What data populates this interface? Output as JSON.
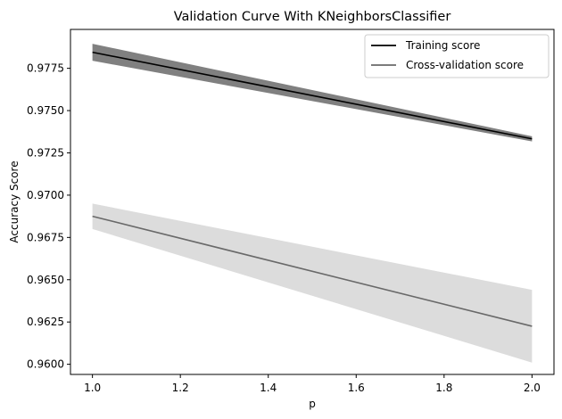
{
  "chart_data": {
    "type": "line",
    "title": "Validation Curve With KNeighborsClassifier",
    "xlabel": "p",
    "ylabel": "Accuracy Score",
    "xlim": [
      0.95,
      2.05
    ],
    "ylim": [
      0.9594,
      0.9798
    ],
    "xticks": [
      "1.0",
      "1.2",
      "1.4",
      "1.6",
      "1.8",
      "2.0"
    ],
    "yticks": [
      "0.9600",
      "0.9625",
      "0.9650",
      "0.9675",
      "0.9700",
      "0.9725",
      "0.9750",
      "0.9775"
    ],
    "grid": false,
    "legend_position": "top-right",
    "x": [
      1.0,
      2.0
    ],
    "series": [
      {
        "name": "Training score",
        "values": [
          0.97845,
          0.97333
        ],
        "band_lower": [
          0.97795,
          0.97318
        ],
        "band_upper": [
          0.97895,
          0.97348
        ],
        "line_color": "#000000",
        "band_color": "#808080"
      },
      {
        "name": "Cross-validation score",
        "values": [
          0.96875,
          0.96225
        ],
        "band_lower": [
          0.968,
          0.9601
        ],
        "band_upper": [
          0.9695,
          0.9644
        ],
        "line_color": "#696969",
        "band_color": "#dcdcdc"
      }
    ]
  }
}
